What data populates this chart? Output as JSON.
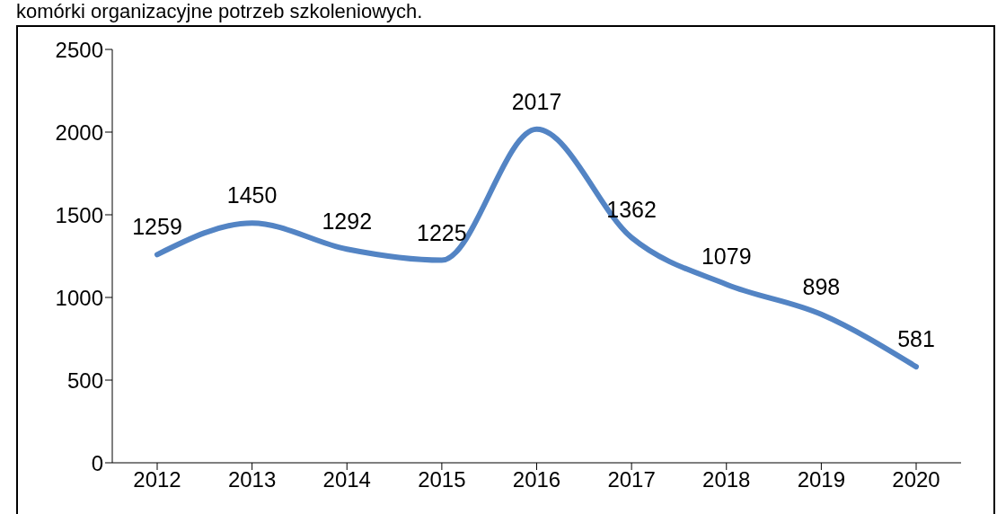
{
  "chart_data": {
    "type": "line",
    "annotations": [
      "komórki organizacyjne potrzeb szkoleniowych."
    ],
    "categories": [
      "2012",
      "2013",
      "2014",
      "2015",
      "2016",
      "2017",
      "2018",
      "2019",
      "2020"
    ],
    "series": [
      {
        "color": "#5384c4",
        "values": [
          1259,
          1450,
          1292,
          1225,
          2017,
          1362,
          1079,
          898,
          581
        ]
      }
    ],
    "ylim": [
      0,
      2500
    ],
    "yticks": [
      0,
      500,
      1000,
      1500,
      2000,
      2500
    ],
    "grid": false,
    "legend": false,
    "marker": "none",
    "line_style": "solid",
    "data_labels": true
  }
}
